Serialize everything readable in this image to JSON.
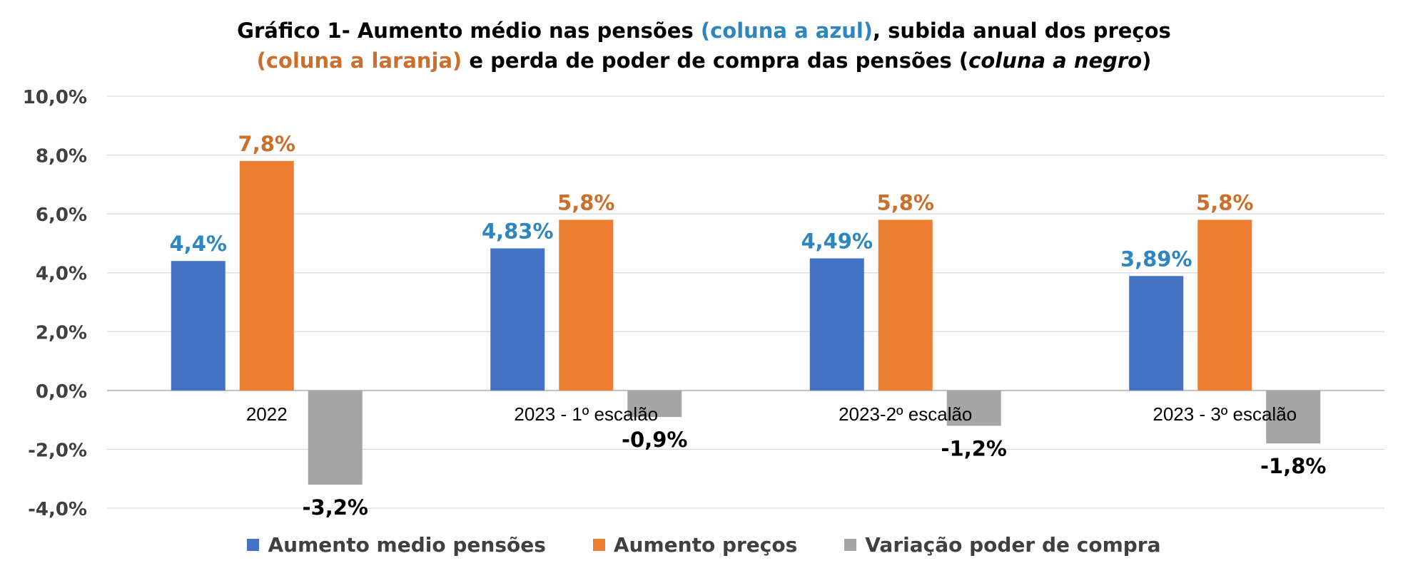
{
  "title": {
    "part1": "Gráfico 1- Aumento médio nas pensões ",
    "blue": "(coluna a azul)",
    "part2": ", subida anual  dos preços",
    "orange": "(coluna a laranja)",
    "part3": " e perda de poder de compra das pensões (",
    "italic": "coluna a negro",
    "part4": ")"
  },
  "chart_data": {
    "type": "bar",
    "categories": [
      "2022",
      "2023 - 1º escalão",
      "2023-2º escalão",
      "2023 - 3º escalão"
    ],
    "series": [
      {
        "name": "Aumento medio pensões",
        "values": [
          4.4,
          4.83,
          4.49,
          3.89
        ],
        "labels": [
          "4,4%",
          "4,83%",
          "4,49%",
          "3,89%"
        ],
        "color": "#4472C4",
        "label_color": "#2E86C1"
      },
      {
        "name": "Aumento preços",
        "values": [
          7.8,
          5.8,
          5.8,
          5.8
        ],
        "labels": [
          "7,8%",
          "5,8%",
          "5,8%",
          "5,8%"
        ],
        "color": "#ED7D31",
        "label_color": "#CC6F2C"
      },
      {
        "name": "Variação poder de compra",
        "values": [
          -3.2,
          -0.9,
          -1.2,
          -1.8
        ],
        "labels": [
          "-3,2%",
          "-0,9%",
          "-1,2%",
          "-1,8%"
        ],
        "color": "#A5A5A5",
        "label_color": "#000000"
      }
    ],
    "ylim": [
      -4,
      10
    ],
    "yticks": [
      "-4,0%",
      "-2,0%",
      "0,0%",
      "2,0%",
      "4,0%",
      "6,0%",
      "8,0%",
      "10,0%"
    ],
    "ytick_values": [
      -4,
      -2,
      0,
      2,
      4,
      6,
      8,
      10
    ],
    "grid": true,
    "legend_position": "bottom"
  }
}
